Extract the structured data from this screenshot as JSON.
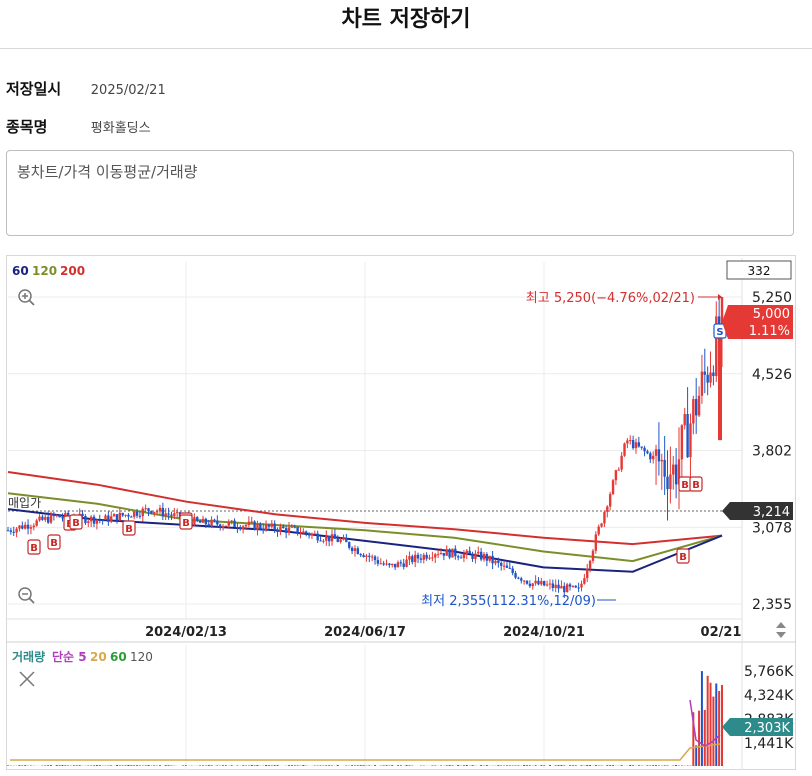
{
  "header": {
    "title": "차트 저장하기"
  },
  "info": {
    "date_label": "저장일시",
    "date_value": "2025/02/21",
    "stock_label": "종목명",
    "stock_value": "평화홀딩스"
  },
  "memo": {
    "text": "봉차트/가격 이동평균/거래량"
  },
  "chart": {
    "ma_legend": [
      {
        "label": "60",
        "color": "#1a237e"
      },
      {
        "label": "120",
        "color": "#7a8f2a"
      },
      {
        "label": "200",
        "color": "#d32f2f"
      }
    ],
    "count_box": "332",
    "high_note": "최고 5,250(−4.76%,02/21)",
    "low_note": "최저 2,355(112.31%,12/09)",
    "buy_price_label": "매입가",
    "current_price": "5,000",
    "current_change": "1.11%",
    "buy_price_value": "3,214",
    "y_tick_labels": [
      "5,250",
      "4,526",
      "3,802",
      "3,078",
      "2,355"
    ],
    "x_tick_labels": [
      "2024/02/13",
      "2024/06/17",
      "2024/10/21",
      "02/21"
    ],
    "buy_marker": "B",
    "sell_marker": "S",
    "colors": {
      "up": "#e53935",
      "down": "#1e56c8",
      "current_tag": "#e53935",
      "buy_tag": "#333333",
      "volume_tag": "#2e8b8b"
    }
  },
  "chart_data": [
    {
      "type": "candlestick",
      "title": "",
      "ylim": [
        2355,
        5250
      ],
      "x_ticks": [
        "2024/02/13",
        "2024/06/17",
        "2024/10/21",
        "02/21"
      ],
      "y_ticks": [
        5250,
        4526,
        3802,
        3078,
        2355
      ],
      "series": [
        {
          "name": "60",
          "approx_values": [
            3250,
            3150,
            3100,
            3050,
            2950,
            2850,
            2700,
            2660,
            3000
          ]
        },
        {
          "name": "120",
          "approx_values": [
            3400,
            3300,
            3150,
            3100,
            3050,
            2980,
            2850,
            2760,
            3000
          ]
        },
        {
          "name": "200",
          "approx_values": [
            3600,
            3480,
            3320,
            3200,
            3120,
            3060,
            2980,
            2920,
            3000
          ]
        }
      ],
      "close_approx": [
        3050,
        3180,
        3150,
        3250,
        3120,
        3100,
        3050,
        2950,
        2700,
        2850,
        2800,
        2550,
        2480,
        3900,
        3600,
        5000
      ],
      "annotations": {
        "high": {
          "value": 5250,
          "change": "−4.76%",
          "date": "02/21"
        },
        "low": {
          "value": 2355,
          "change": "112.31%",
          "date": "12/09"
        },
        "buy_price": 3214,
        "current": 5000,
        "current_change_pct": 1.11
      }
    },
    {
      "type": "bar",
      "title": "거래량",
      "legend": [
        "거래량",
        "단순 5",
        "20",
        "60",
        "120"
      ],
      "y_ticks": [
        5766000,
        4324000,
        2883000,
        1441000
      ],
      "ylim": [
        0,
        5766000
      ],
      "current": 2303000
    }
  ],
  "volume": {
    "legend": [
      {
        "label": "거래량",
        "color": "#2e8b8b"
      },
      {
        "label": "단순 5",
        "color": "#b23cc0"
      },
      {
        "label": "20",
        "color": "#d7a94a"
      },
      {
        "label": "60",
        "color": "#2e9b3a"
      },
      {
        "label": "120",
        "color": "#555555"
      }
    ],
    "y_tick_labels": [
      "5,766K",
      "4,324K",
      "2,883K",
      "1,441K"
    ],
    "current_label": "2,303K"
  }
}
